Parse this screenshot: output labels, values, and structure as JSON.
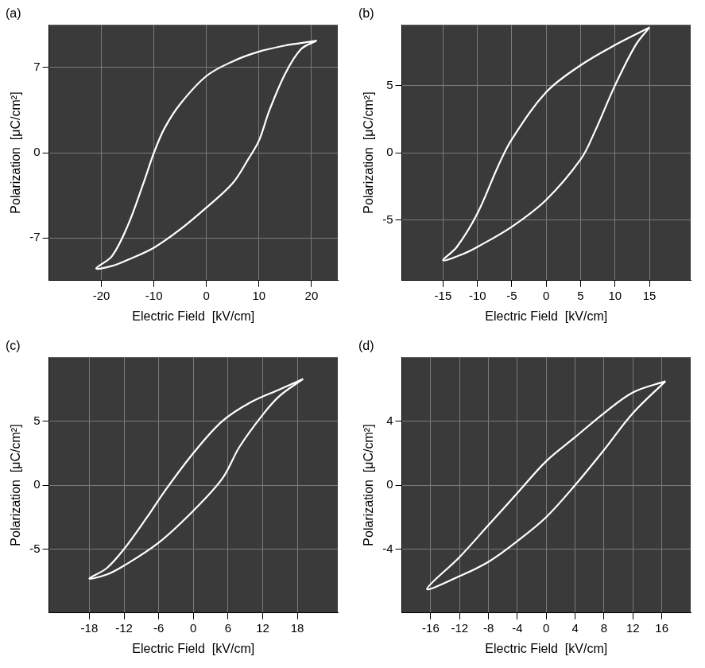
{
  "chart_data": [
    {
      "type": "line",
      "title": "(a)",
      "x_label": "Electric Field  [kV/cm]",
      "y_label": "Polarization  [μC/cm²]",
      "color": "#ffffff",
      "grid": true,
      "xlim": [
        -30,
        25
      ],
      "xticks": [
        -20,
        -10,
        0,
        10,
        20
      ],
      "ylim": [
        -10.5,
        10.5
      ],
      "yticks": [
        -7,
        0,
        7
      ],
      "x": [
        21,
        18,
        15,
        10,
        5,
        0,
        -5,
        -8,
        -10,
        -12,
        -15,
        -18,
        -21,
        -18,
        -15,
        -10,
        -5,
        0,
        5,
        8,
        10,
        12,
        15,
        18,
        21
      ],
      "values": [
        9.2,
        9.0,
        8.8,
        8.3,
        7.5,
        6.3,
        4,
        2,
        0,
        -2.5,
        -6,
        -8.5,
        -9.5,
        -9.3,
        -8.8,
        -7.8,
        -6.3,
        -4.5,
        -2.5,
        -0.5,
        1,
        3.5,
        6.5,
        8.5,
        9.2
      ]
    },
    {
      "type": "line",
      "title": "(b)",
      "x_label": "Electric Field  [kV/cm]",
      "y_label": "Polarization  [μC/cm²]",
      "color": "#ffffff",
      "grid": true,
      "xlim": [
        -21,
        21
      ],
      "xticks": [
        -15,
        -10,
        -5,
        0,
        5,
        10,
        15
      ],
      "ylim": [
        -9.5,
        9.5
      ],
      "yticks": [
        -5,
        0,
        5
      ],
      "x": [
        15,
        10,
        5,
        0,
        -5,
        -7,
        -10,
        -13,
        -15,
        -12,
        -10,
        -5,
        0,
        5,
        7,
        10,
        13,
        15
      ],
      "values": [
        9.3,
        8,
        6.5,
        4.5,
        1,
        -1,
        -4.5,
        -7,
        -8,
        -7.5,
        -7,
        -5.5,
        -3.5,
        -0.5,
        1.5,
        5,
        8,
        9.3
      ]
    },
    {
      "type": "line",
      "title": "(c)",
      "x_label": "Electric Field  [kV/cm]",
      "y_label": "Polarization  [μC/cm²]",
      "color": "#ffffff",
      "grid": true,
      "xlim": [
        -25,
        25
      ],
      "xticks": [
        -18,
        -12,
        -6,
        0,
        6,
        12,
        18
      ],
      "ylim": [
        -10,
        10
      ],
      "yticks": [
        -5,
        0,
        5
      ],
      "x": [
        19,
        15,
        10,
        5,
        0,
        -5,
        -8,
        -12,
        -15,
        -18,
        -15,
        -12,
        -6,
        0,
        5,
        8,
        12,
        15,
        19
      ],
      "values": [
        8.3,
        7.5,
        6.5,
        5,
        2.5,
        -0.5,
        -2.5,
        -5,
        -6.5,
        -7.3,
        -7,
        -6.3,
        -4.5,
        -2,
        0.5,
        3,
        5.5,
        7,
        8.3
      ]
    },
    {
      "type": "line",
      "title": "(d)",
      "x_label": "Electric Field  [kV/cm]",
      "y_label": "Polarization  [μC/cm²]",
      "color": "#ffffff",
      "grid": true,
      "xlim": [
        -20,
        20
      ],
      "xticks": [
        -16,
        -12,
        -8,
        -4,
        0,
        4,
        8,
        12,
        16
      ],
      "ylim": [
        -8,
        8
      ],
      "yticks": [
        -4,
        0,
        4
      ],
      "x": [
        16.5,
        12,
        8,
        4,
        0,
        -4,
        -8,
        -12,
        -16.5,
        -12,
        -8,
        -4,
        0,
        4,
        8,
        12,
        16.5
      ],
      "values": [
        6.5,
        5.8,
        4.5,
        3,
        1.5,
        -0.5,
        -2.5,
        -4.5,
        -6.5,
        -5.7,
        -4.8,
        -3.5,
        -2,
        0,
        2.2,
        4.5,
        6.5
      ]
    }
  ]
}
